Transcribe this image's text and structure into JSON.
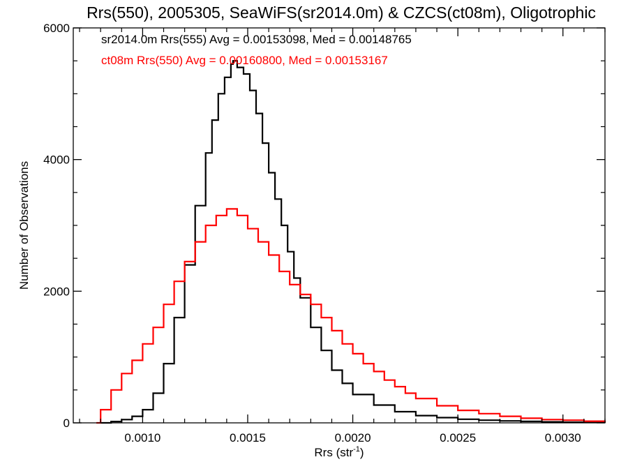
{
  "chart_data": {
    "type": "line",
    "title": "Rrs(550), 2005305, SeaWiFS(sr2014.0m) & CZCS(ct08m), Oligotrophic",
    "xlabel": "Rrs (str",
    "xlabel_superscript": "-1",
    "xlabel_suffix": ")",
    "ylabel": "Number of Observations",
    "xlim": [
      0.00067,
      0.0032
    ],
    "ylim": [
      0,
      6000
    ],
    "x_ticks": [
      {
        "value": 0.001,
        "label": "0.0010"
      },
      {
        "value": 0.0015,
        "label": "0.0015"
      },
      {
        "value": 0.002,
        "label": "0.0020"
      },
      {
        "value": 0.0025,
        "label": "0.0025"
      },
      {
        "value": 0.003,
        "label": "0.0030"
      }
    ],
    "y_ticks": [
      {
        "value": 0,
        "label": "0"
      },
      {
        "value": 2000,
        "label": "2000"
      },
      {
        "value": 4000,
        "label": "4000"
      },
      {
        "value": 6000,
        "label": "6000"
      }
    ],
    "grid": false,
    "legend_position": "top-left",
    "series": [
      {
        "name": "sr2014.0m Rrs(555) Avg = 0.00153098, Med = 0.00148765",
        "color": "#000000",
        "style": "histogram-step",
        "x": [
          0.0008,
          0.00085,
          0.0009,
          0.00095,
          0.001,
          0.00105,
          0.0011,
          0.00115,
          0.0012,
          0.00125,
          0.0013,
          0.00133,
          0.00136,
          0.00139,
          0.00142,
          0.00143,
          0.00145,
          0.00148,
          0.00151,
          0.00154,
          0.00157,
          0.0016,
          0.00163,
          0.00166,
          0.00169,
          0.00172,
          0.00175,
          0.0018,
          0.00185,
          0.0019,
          0.00195,
          0.002,
          0.0021,
          0.0022,
          0.0023,
          0.0024,
          0.0025,
          0.0026,
          0.0027,
          0.0028,
          0.0029,
          0.003,
          0.0031,
          0.0032
        ],
        "y": [
          0,
          20,
          50,
          100,
          200,
          450,
          900,
          1600,
          2400,
          3300,
          4100,
          4600,
          5000,
          5250,
          5450,
          5500,
          5400,
          5300,
          5050,
          4700,
          4250,
          3800,
          3400,
          3000,
          2600,
          2200,
          1900,
          1450,
          1100,
          800,
          600,
          430,
          270,
          170,
          110,
          80,
          55,
          40,
          30,
          22,
          15,
          10,
          6,
          3
        ]
      },
      {
        "name": "ct08m Rrs(550) Avg = 0.00160800, Med = 0.00153167",
        "color": "#ff0000",
        "style": "histogram-step",
        "x": [
          0.00078,
          0.0008,
          0.00085,
          0.0009,
          0.00095,
          0.001,
          0.00105,
          0.0011,
          0.00115,
          0.0012,
          0.00125,
          0.0013,
          0.00135,
          0.0014,
          0.00145,
          0.0015,
          0.00155,
          0.0016,
          0.00165,
          0.0017,
          0.00175,
          0.0018,
          0.00185,
          0.0019,
          0.00195,
          0.002,
          0.00205,
          0.0021,
          0.00215,
          0.0022,
          0.00225,
          0.0023,
          0.0024,
          0.0025,
          0.0026,
          0.0027,
          0.0028,
          0.0029,
          0.003,
          0.0031,
          0.0032
        ],
        "y": [
          0,
          200,
          500,
          750,
          950,
          1200,
          1450,
          1800,
          2150,
          2450,
          2750,
          3000,
          3150,
          3250,
          3150,
          2950,
          2750,
          2550,
          2300,
          2100,
          1950,
          1800,
          1600,
          1400,
          1200,
          1050,
          900,
          780,
          650,
          550,
          450,
          370,
          260,
          190,
          140,
          100,
          70,
          50,
          40,
          25,
          10
        ]
      }
    ]
  }
}
